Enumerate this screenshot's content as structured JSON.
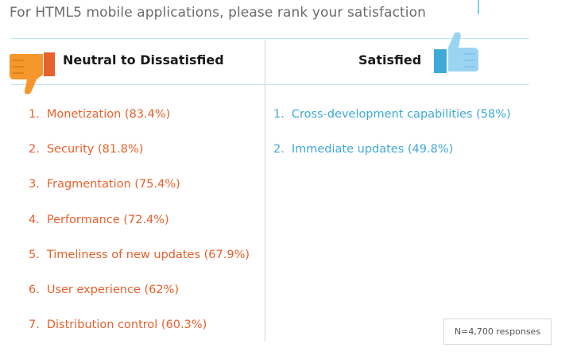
{
  "title": "For HTML5 mobile applications, please rank your satisfaction",
  "colors": {
    "negative": "#e8602c",
    "positive": "#3fa9d8",
    "negative_icon": "#f5972a",
    "positive_icon": "#9ad4f2"
  },
  "negative": {
    "header": "Neutral to Dissatisfied",
    "icon": "thumbs-down-icon",
    "items": [
      {
        "num": "1.",
        "text": "Monetization (83.4%)"
      },
      {
        "num": "2.",
        "text": "Security (81.8%)"
      },
      {
        "num": "3.",
        "text": "Fragmentation (75.4%)"
      },
      {
        "num": "4.",
        "text": "Performance (72.4%)"
      },
      {
        "num": "5.",
        "text": "Timeliness of new updates (67.9%)"
      },
      {
        "num": "6.",
        "text": "User experience (62%)"
      },
      {
        "num": "7.",
        "text": "Distribution control (60.3%)"
      }
    ]
  },
  "positive": {
    "header": "Satisfied",
    "icon": "thumbs-up-icon",
    "items": [
      {
        "num": "1.",
        "text": "Cross-development capabilities (58%)"
      },
      {
        "num": "2.",
        "text": "Immediate updates (49.8%)"
      }
    ]
  },
  "footnote": "N=4,700 responses",
  "chart_data": {
    "type": "table",
    "title": "For HTML5 mobile applications, please rank your satisfaction",
    "groups": [
      {
        "name": "Neutral to Dissatisfied",
        "categories": [
          "Monetization",
          "Security",
          "Fragmentation",
          "Performance",
          "Timeliness of new updates",
          "User experience",
          "Distribution control"
        ],
        "values": [
          83.4,
          81.8,
          75.4,
          72.4,
          67.9,
          62,
          60.3
        ]
      },
      {
        "name": "Satisfied",
        "categories": [
          "Cross-development capabilities",
          "Immediate updates"
        ],
        "values": [
          58,
          49.8
        ]
      }
    ],
    "unit": "%",
    "note": "N=4,700 responses"
  }
}
